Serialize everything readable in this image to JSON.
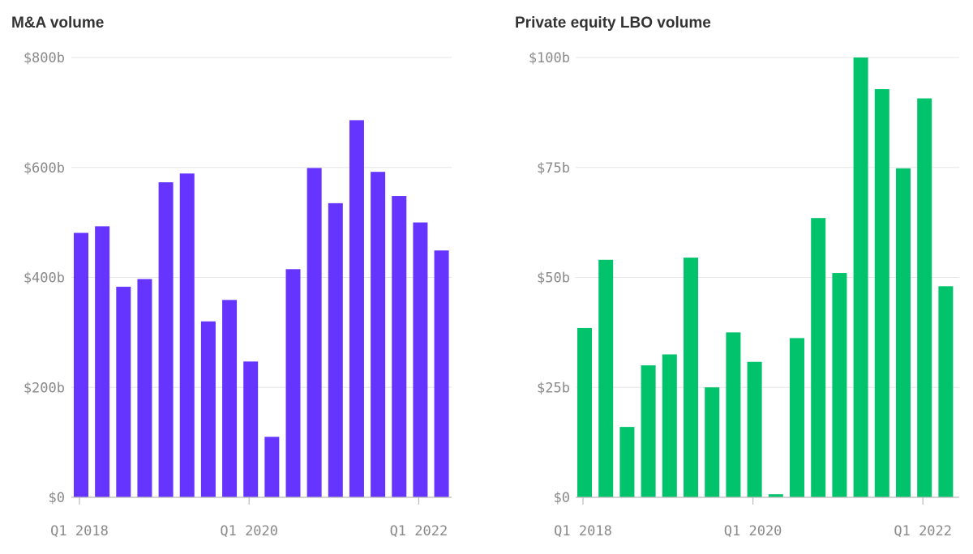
{
  "colors": {
    "ma_bar": "#6535ff",
    "lbo_bar": "#00c36b",
    "grid": "#e6e6e6",
    "axis": "#bbbbbb",
    "text": "#8a8a8a"
  },
  "chart_data": [
    {
      "type": "bar",
      "title": "M&A volume",
      "categories": [
        "Q1 2018",
        "Q2 2018",
        "Q3 2018",
        "Q4 2018",
        "Q1 2019",
        "Q2 2019",
        "Q3 2019",
        "Q4 2019",
        "Q1 2020",
        "Q2 2020",
        "Q3 2020",
        "Q4 2020",
        "Q1 2021",
        "Q2 2021",
        "Q3 2021",
        "Q4 2021",
        "Q1 2022",
        "Q2 2022"
      ],
      "values": [
        481,
        493,
        383,
        397,
        573,
        589,
        320,
        359,
        247,
        110,
        415,
        599,
        535,
        686,
        592,
        548,
        500,
        449
      ],
      "ylim": [
        0,
        800
      ],
      "yticks": [
        0,
        200,
        400,
        600,
        800
      ],
      "ytick_labels": [
        "$0",
        "$200b",
        "$400b",
        "$600b",
        "$800b"
      ],
      "xtick_labels": [
        {
          "category": "Q1 2018",
          "label": "Q1 2018"
        },
        {
          "category": "Q1 2020",
          "label": "Q1 2020"
        },
        {
          "category": "Q1 2022",
          "label": "Q1 2022"
        }
      ],
      "grid": true
    },
    {
      "type": "bar",
      "title": "Private equity LBO volume",
      "categories": [
        "Q1 2018",
        "Q2 2018",
        "Q3 2018",
        "Q4 2018",
        "Q1 2019",
        "Q2 2019",
        "Q3 2019",
        "Q4 2019",
        "Q1 2020",
        "Q2 2020",
        "Q3 2020",
        "Q4 2020",
        "Q1 2021",
        "Q2 2021",
        "Q3 2021",
        "Q4 2021",
        "Q1 2022",
        "Q2 2022"
      ],
      "values": [
        38.5,
        54,
        16,
        30,
        32.5,
        54.5,
        25,
        37.5,
        30.8,
        0.7,
        36.2,
        63.5,
        51,
        100,
        92.8,
        74.8,
        90.7,
        48
      ],
      "ylim": [
        0,
        100
      ],
      "yticks": [
        0,
        25,
        50,
        75,
        100
      ],
      "ytick_labels": [
        "$0",
        "$25b",
        "$50b",
        "$75b",
        "$100b"
      ],
      "xtick_labels": [
        {
          "category": "Q1 2018",
          "label": "Q1 2018"
        },
        {
          "category": "Q1 2020",
          "label": "Q1 2020"
        },
        {
          "category": "Q1 2022",
          "label": "Q1 2022"
        }
      ],
      "grid": true
    }
  ]
}
